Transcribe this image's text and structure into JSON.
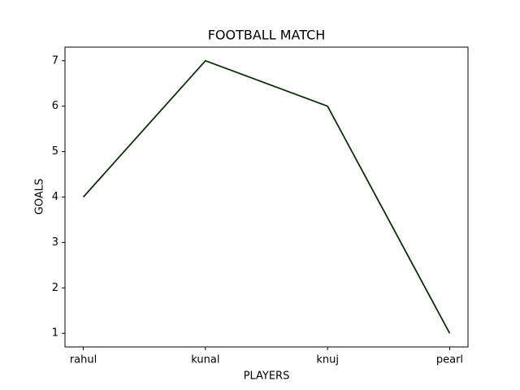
{
  "chart_data": {
    "type": "line",
    "title": "FOOTBALL MATCH",
    "x_label": "PLAYERS",
    "y_label": "GOALS",
    "categories": [
      "rahul",
      "kunal",
      "knuj",
      "pearl"
    ],
    "series": [
      {
        "name": "goals",
        "color": "#0b3008",
        "values": [
          4,
          7,
          6,
          1
        ]
      }
    ],
    "ylim": [
      0.7,
      7.3
    ],
    "yticks": [
      1,
      2,
      3,
      4,
      5,
      6,
      7
    ],
    "grid": false
  }
}
